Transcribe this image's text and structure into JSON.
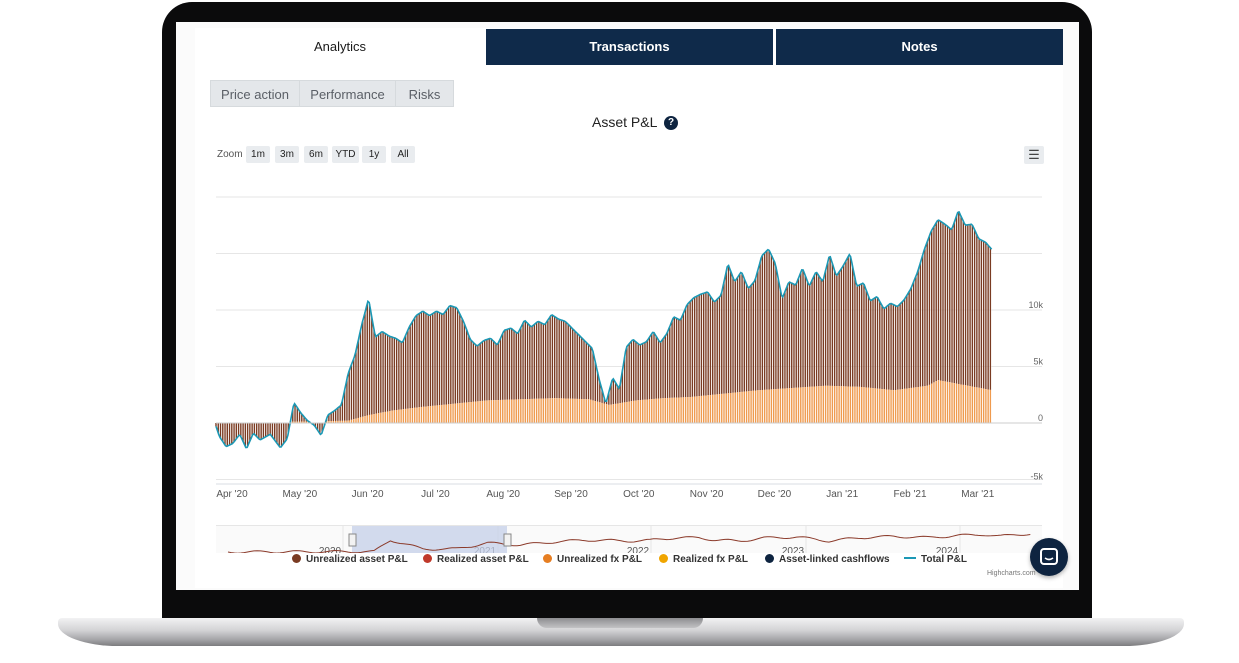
{
  "tabs": [
    {
      "label": "Analytics",
      "active": true
    },
    {
      "label": "Transactions",
      "active": false
    },
    {
      "label": "Notes",
      "active": false
    }
  ],
  "subtabs": [
    "Price action",
    "Performance",
    "Risks"
  ],
  "chart_title": "Asset P&L",
  "help_icon": "question-circle-icon",
  "zoom": {
    "label": "Zoom",
    "buttons": [
      "1m",
      "3m",
      "6m",
      "YTD",
      "1y",
      "All"
    ]
  },
  "menu_icon": "hamburger-menu-icon",
  "credits": "Highcharts.com",
  "colors": {
    "navy": "#0f2a4a",
    "unrealized_asset": "#7a3b22",
    "realized_asset": "#c0392b",
    "unrealized_fx": "#e67e22",
    "realized_fx": "#f0a500",
    "asset_linked": "#0e2440",
    "total": "#1b98b5"
  },
  "chart_data": {
    "type": "area",
    "x_axis_labels": [
      "Apr '20",
      "May '20",
      "Jun '20",
      "Jul '20",
      "Aug '20",
      "Sep '20",
      "Oct '20",
      "Nov '20",
      "Dec '20",
      "Jan '21",
      "Feb '21",
      "Mar '21"
    ],
    "y_axis_labels": [
      "-5k",
      "0",
      "5k",
      "10k"
    ],
    "navigator_labels": [
      "2020",
      "2021",
      "2022",
      "2023",
      "2024"
    ],
    "series": [
      {
        "name": "Unrealized asset P&L"
      },
      {
        "name": "Realized asset P&L"
      },
      {
        "name": "Unrealized fx P&L"
      },
      {
        "name": "Realized fx P&L"
      },
      {
        "name": "Asset-linked cashflows"
      },
      {
        "name": "Total P&L"
      }
    ],
    "total_points": [
      [
        0.0,
        -0.3
      ],
      [
        0.05,
        -1.2
      ],
      [
        0.15,
        -2.1
      ],
      [
        0.25,
        -1.8
      ],
      [
        0.35,
        -1.0
      ],
      [
        0.45,
        -2.3
      ],
      [
        0.55,
        -0.9
      ],
      [
        0.65,
        -1.5
      ],
      [
        0.8,
        -1.0
      ],
      [
        0.95,
        -2.2
      ],
      [
        1.05,
        -1.4
      ],
      [
        1.15,
        1.8
      ],
      [
        1.25,
        0.9
      ],
      [
        1.35,
        0.2
      ],
      [
        1.45,
        -0.2
      ],
      [
        1.55,
        -1.1
      ],
      [
        1.65,
        0.7
      ],
      [
        1.75,
        1.1
      ],
      [
        1.85,
        1.6
      ],
      [
        1.95,
        4.4
      ],
      [
        2.05,
        6.0
      ],
      [
        2.15,
        8.7
      ],
      [
        2.25,
        11.0
      ],
      [
        2.35,
        7.6
      ],
      [
        2.45,
        8.1
      ],
      [
        2.55,
        7.7
      ],
      [
        2.65,
        7.5
      ],
      [
        2.75,
        7.1
      ],
      [
        2.85,
        8.5
      ],
      [
        2.95,
        9.5
      ],
      [
        3.05,
        9.9
      ],
      [
        3.15,
        9.5
      ],
      [
        3.25,
        9.9
      ],
      [
        3.35,
        9.6
      ],
      [
        3.45,
        10.4
      ],
      [
        3.55,
        10.2
      ],
      [
        3.65,
        9.0
      ],
      [
        3.75,
        7.4
      ],
      [
        3.85,
        6.8
      ],
      [
        3.95,
        7.3
      ],
      [
        4.05,
        7.5
      ],
      [
        4.15,
        6.9
      ],
      [
        4.25,
        8.2
      ],
      [
        4.35,
        8.4
      ],
      [
        4.45,
        7.9
      ],
      [
        4.55,
        9.1
      ],
      [
        4.65,
        8.5
      ],
      [
        4.75,
        9.0
      ],
      [
        4.85,
        8.7
      ],
      [
        4.95,
        9.6
      ],
      [
        5.05,
        9.2
      ],
      [
        5.15,
        9.0
      ],
      [
        5.25,
        8.4
      ],
      [
        5.35,
        7.8
      ],
      [
        5.45,
        7.2
      ],
      [
        5.55,
        6.6
      ],
      [
        5.65,
        3.9
      ],
      [
        5.75,
        1.7
      ],
      [
        5.85,
        4.0
      ],
      [
        5.95,
        3.0
      ],
      [
        6.05,
        6.7
      ],
      [
        6.15,
        7.4
      ],
      [
        6.25,
        6.9
      ],
      [
        6.35,
        7.2
      ],
      [
        6.45,
        8.1
      ],
      [
        6.55,
        7.1
      ],
      [
        6.65,
        7.9
      ],
      [
        6.75,
        9.4
      ],
      [
        6.85,
        9.1
      ],
      [
        6.95,
        10.5
      ],
      [
        7.05,
        11.1
      ],
      [
        7.15,
        11.4
      ],
      [
        7.25,
        11.6
      ],
      [
        7.35,
        10.7
      ],
      [
        7.45,
        11.3
      ],
      [
        7.55,
        14.1
      ],
      [
        7.65,
        12.5
      ],
      [
        7.75,
        13.4
      ],
      [
        7.85,
        11.9
      ],
      [
        7.95,
        12.6
      ],
      [
        8.05,
        14.8
      ],
      [
        8.15,
        15.4
      ],
      [
        8.25,
        14.1
      ],
      [
        8.35,
        11.0
      ],
      [
        8.45,
        12.5
      ],
      [
        8.55,
        12.2
      ],
      [
        8.65,
        13.7
      ],
      [
        8.75,
        12.1
      ],
      [
        8.85,
        13.4
      ],
      [
        8.95,
        12.5
      ],
      [
        9.05,
        14.9
      ],
      [
        9.15,
        13.0
      ],
      [
        9.25,
        13.9
      ],
      [
        9.35,
        15.0
      ],
      [
        9.45,
        12.1
      ],
      [
        9.55,
        12.4
      ],
      [
        9.65,
        10.8
      ],
      [
        9.75,
        11.2
      ],
      [
        9.85,
        10.1
      ],
      [
        9.95,
        10.6
      ],
      [
        10.05,
        10.3
      ],
      [
        10.15,
        10.9
      ],
      [
        10.25,
        11.9
      ],
      [
        10.35,
        13.4
      ],
      [
        10.45,
        15.4
      ],
      [
        10.55,
        17.0
      ],
      [
        10.65,
        18.0
      ],
      [
        10.75,
        17.6
      ],
      [
        10.85,
        17.1
      ],
      [
        10.95,
        18.8
      ],
      [
        11.05,
        17.5
      ],
      [
        11.15,
        17.6
      ],
      [
        11.25,
        16.3
      ],
      [
        11.35,
        16.0
      ],
      [
        11.45,
        15.3
      ]
    ],
    "fx_points": [
      [
        0.0,
        0.0
      ],
      [
        1.95,
        0.2
      ],
      [
        2.25,
        0.7
      ],
      [
        2.6,
        1.1
      ],
      [
        3.0,
        1.4
      ],
      [
        3.5,
        1.7
      ],
      [
        4.0,
        2.0
      ],
      [
        4.5,
        2.1
      ],
      [
        5.0,
        2.2
      ],
      [
        5.5,
        2.1
      ],
      [
        5.8,
        1.6
      ],
      [
        6.2,
        2.0
      ],
      [
        6.6,
        2.2
      ],
      [
        7.0,
        2.3
      ],
      [
        7.5,
        2.6
      ],
      [
        8.0,
        2.9
      ],
      [
        8.5,
        3.1
      ],
      [
        9.0,
        3.3
      ],
      [
        9.5,
        3.2
      ],
      [
        10.0,
        2.9
      ],
      [
        10.5,
        3.3
      ],
      [
        10.65,
        3.8
      ],
      [
        11.0,
        3.4
      ],
      [
        11.45,
        2.9
      ]
    ],
    "navigator_points": [
      [
        0.0,
        1.0
      ],
      [
        0.18,
        0.98
      ],
      [
        0.2,
        0.4
      ],
      [
        0.24,
        0.85
      ],
      [
        0.28,
        0.85
      ],
      [
        0.32,
        0.55
      ],
      [
        0.36,
        0.65
      ],
      [
        0.4,
        0.5
      ],
      [
        0.44,
        0.4
      ],
      [
        0.5,
        0.45
      ],
      [
        0.52,
        0.42
      ],
      [
        0.53,
        0.35
      ],
      [
        0.55,
        0.3
      ],
      [
        0.58,
        0.28
      ],
      [
        0.6,
        0.4
      ],
      [
        0.63,
        0.45
      ],
      [
        0.66,
        0.3
      ],
      [
        0.7,
        0.25
      ],
      [
        0.74,
        0.45
      ],
      [
        0.78,
        0.28
      ],
      [
        0.82,
        0.22
      ],
      [
        0.86,
        0.28
      ],
      [
        0.9,
        0.18
      ],
      [
        0.93,
        0.12
      ],
      [
        0.95,
        0.22
      ],
      [
        0.97,
        0.12
      ],
      [
        0.99,
        0.1
      ]
    ]
  }
}
